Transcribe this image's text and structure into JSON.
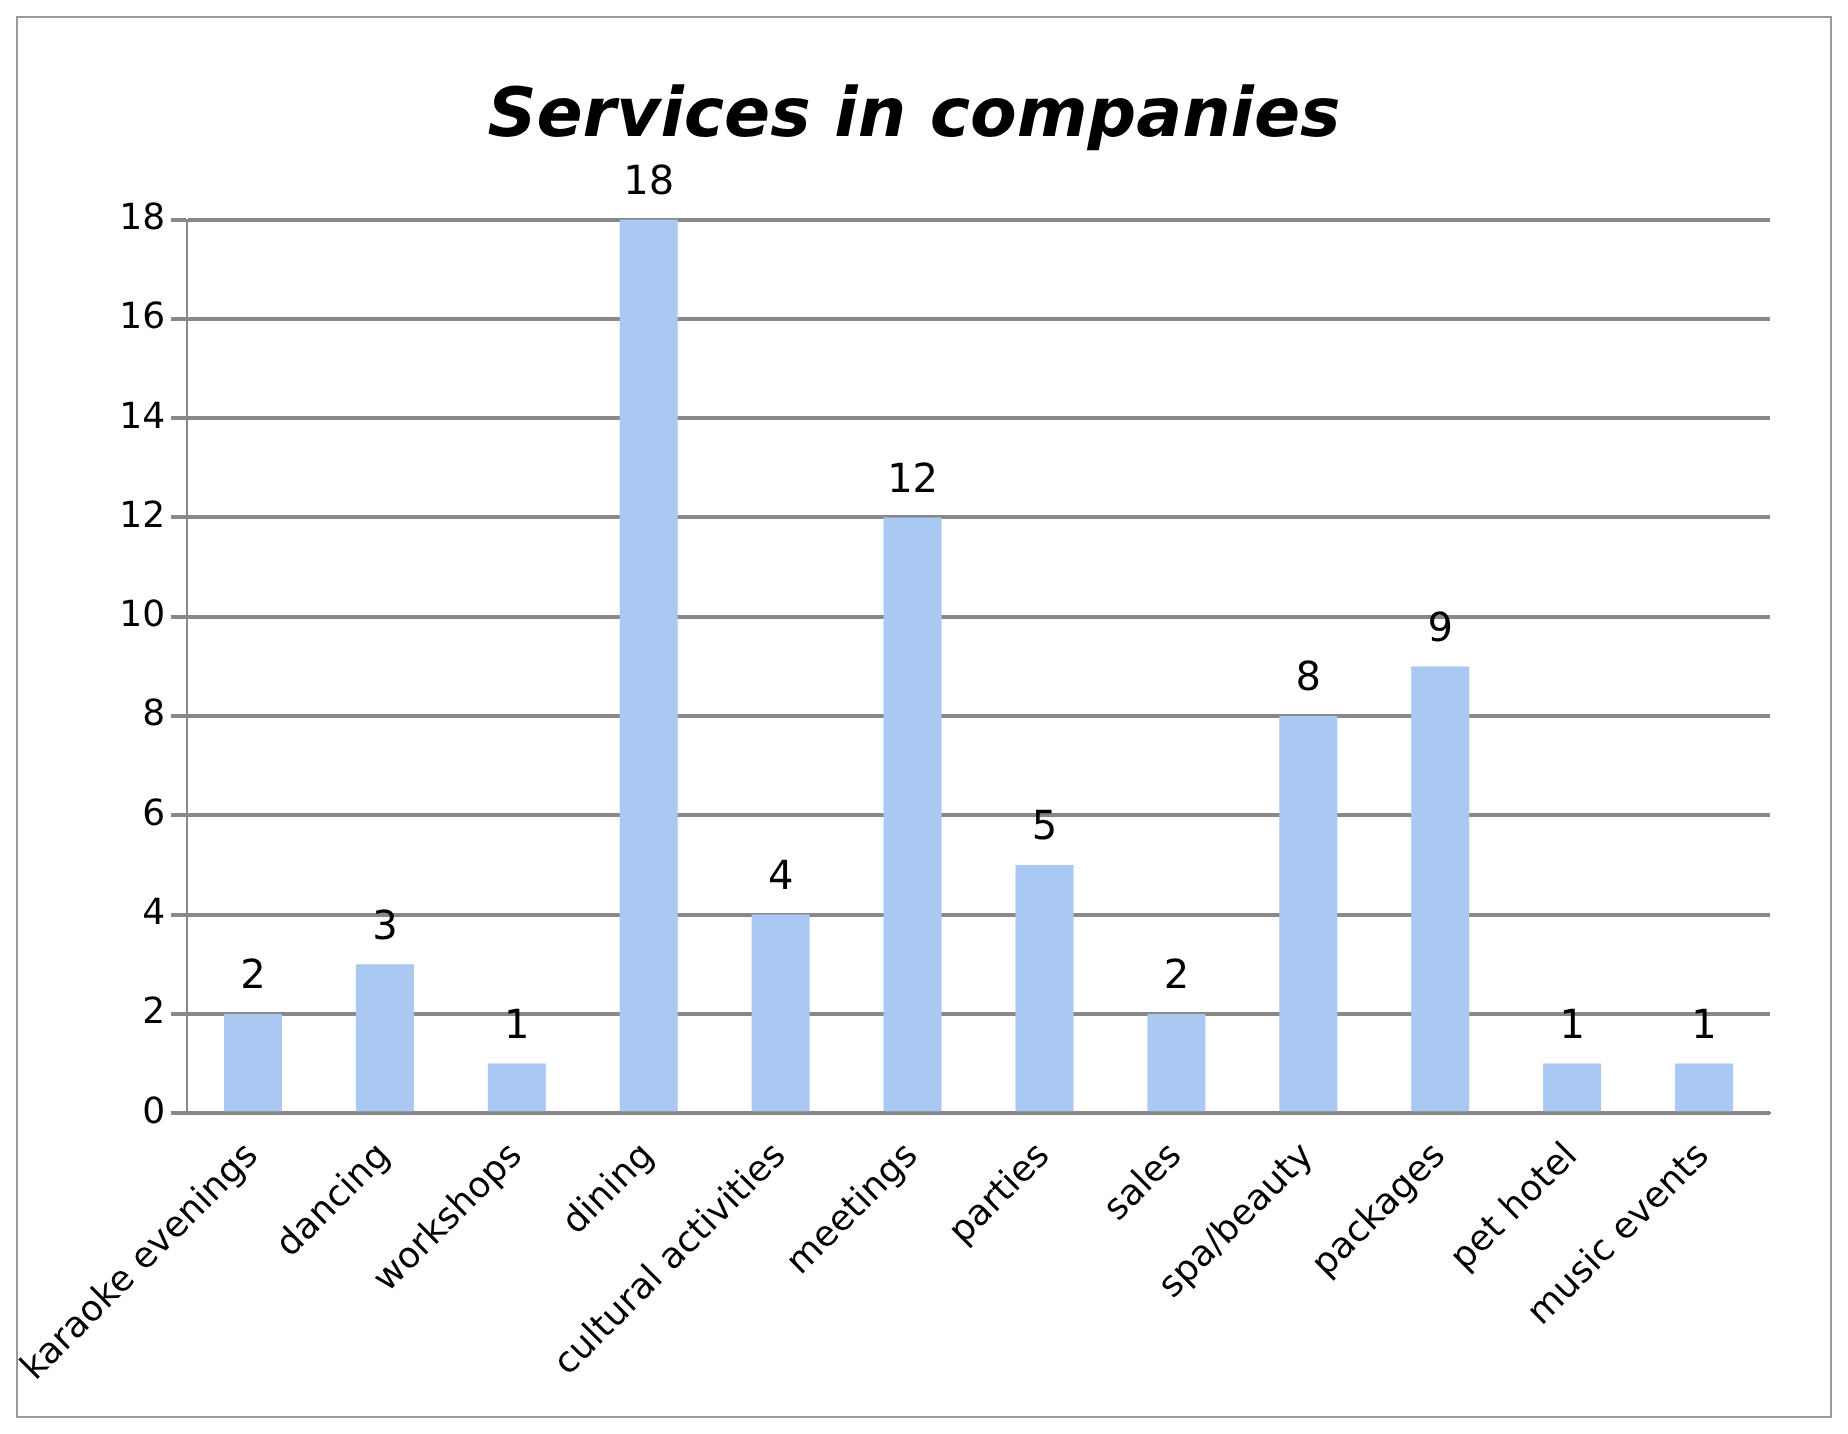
{
  "chart_data": {
    "type": "bar",
    "title": "Services in companies",
    "categories": [
      "karaoke evenings",
      "dancing",
      "workshops",
      "dining",
      "cultural activities",
      "meetings",
      "parties",
      "sales",
      "spa/beauty",
      "packages",
      "pet hotel",
      "music events"
    ],
    "values": [
      2,
      3,
      1,
      18,
      4,
      12,
      5,
      2,
      8,
      9,
      1,
      1
    ],
    "color": "#a9c8f2",
    "ylim": [
      0,
      18
    ],
    "yticks": [
      0,
      2,
      4,
      6,
      8,
      10,
      12,
      14,
      16,
      18
    ],
    "grid": "y",
    "data_labels": true,
    "legend": false
  }
}
